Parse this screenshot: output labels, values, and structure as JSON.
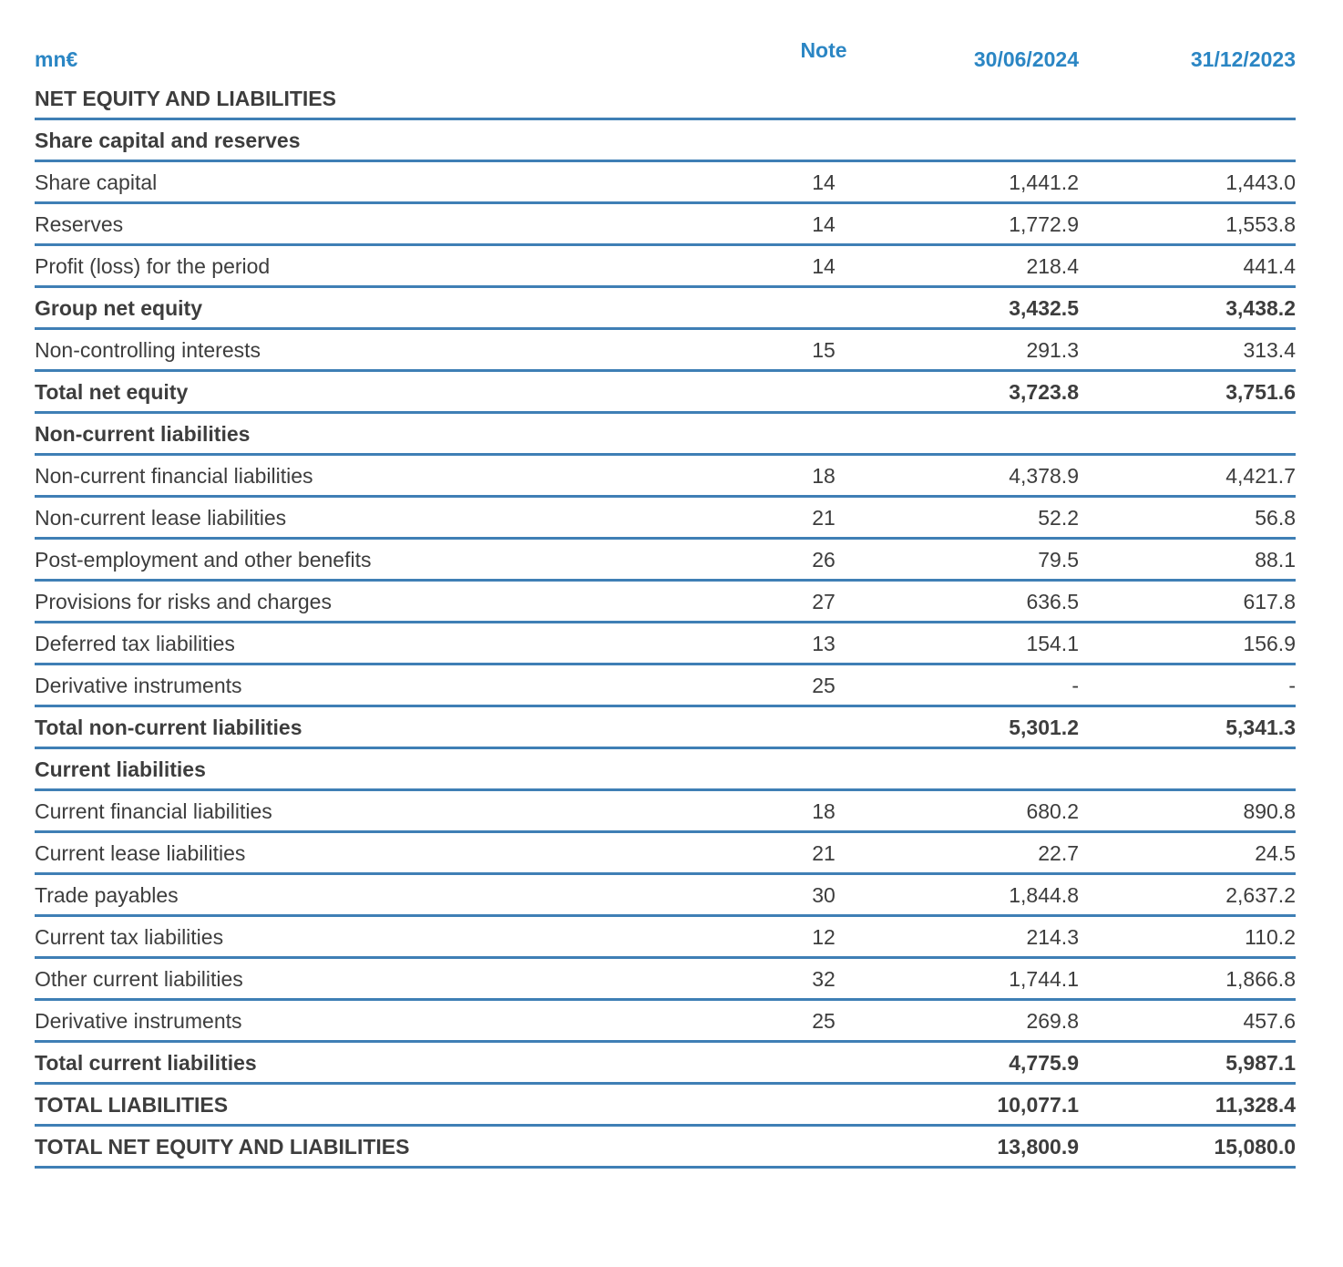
{
  "colors": {
    "accent": "#2b86c4",
    "line": "#3f7fb5",
    "text": "#3d3d3d"
  },
  "table": {
    "unit": "mn€",
    "columns": {
      "note": "Note",
      "period1": "30/06/2024",
      "period2": "31/12/2023"
    },
    "rows": [
      {
        "type": "section",
        "label": "NET EQUITY AND LIABILITIES"
      },
      {
        "type": "section",
        "label": "Share capital and reserves"
      },
      {
        "type": "item",
        "label": "Share capital",
        "note": "14",
        "v1": "1,441.2",
        "v2": "1,443.0"
      },
      {
        "type": "item",
        "label": "Reserves",
        "note": "14",
        "v1": "1,772.9",
        "v2": "1,553.8"
      },
      {
        "type": "item",
        "label": "Profit (loss) for the period",
        "note": "14",
        "v1": "218.4",
        "v2": "441.4"
      },
      {
        "type": "total",
        "label": "Group net equity",
        "v1": "3,432.5",
        "v2": "3,438.2"
      },
      {
        "type": "item",
        "label": "Non-controlling interests",
        "note": "15",
        "v1": "291.3",
        "v2": "313.4"
      },
      {
        "type": "total",
        "label": "Total net equity",
        "v1": "3,723.8",
        "v2": "3,751.6"
      },
      {
        "type": "section",
        "label": "Non-current liabilities"
      },
      {
        "type": "item",
        "label": "Non-current financial liabilities",
        "note": "18",
        "v1": "4,378.9",
        "v2": "4,421.7"
      },
      {
        "type": "item",
        "label": "Non-current lease liabilities",
        "note": "21",
        "v1": "52.2",
        "v2": "56.8"
      },
      {
        "type": "item",
        "label": "Post-employment and other benefits",
        "note": "26",
        "v1": "79.5",
        "v2": "88.1"
      },
      {
        "type": "item",
        "label": "Provisions for risks and charges",
        "note": "27",
        "v1": "636.5",
        "v2": "617.8"
      },
      {
        "type": "item",
        "label": "Deferred tax liabilities",
        "note": "13",
        "v1": "154.1",
        "v2": "156.9"
      },
      {
        "type": "item",
        "label": "Derivative instruments",
        "note": "25",
        "v1": "-",
        "v2": "-"
      },
      {
        "type": "total",
        "label": "Total non-current liabilities",
        "v1": "5,301.2",
        "v2": "5,341.3"
      },
      {
        "type": "section",
        "label": "Current liabilities"
      },
      {
        "type": "item",
        "label": "Current financial liabilities",
        "note": "18",
        "v1": "680.2",
        "v2": "890.8"
      },
      {
        "type": "item",
        "label": "Current lease liabilities",
        "note": "21",
        "v1": "22.7",
        "v2": "24.5"
      },
      {
        "type": "item",
        "label": "Trade payables",
        "note": "30",
        "v1": "1,844.8",
        "v2": "2,637.2"
      },
      {
        "type": "item",
        "label": "Current tax liabilities",
        "note": "12",
        "v1": "214.3",
        "v2": "110.2"
      },
      {
        "type": "item",
        "label": "Other current liabilities",
        "note": "32",
        "v1": "1,744.1",
        "v2": "1,866.8"
      },
      {
        "type": "item",
        "label": "Derivative instruments",
        "note": "25",
        "v1": "269.8",
        "v2": "457.6"
      },
      {
        "type": "total",
        "label": "Total current liabilities",
        "v1": "4,775.9",
        "v2": "5,987.1"
      },
      {
        "type": "total",
        "label": "TOTAL LIABILITIES",
        "v1": "10,077.1",
        "v2": "11,328.4"
      },
      {
        "type": "total",
        "label": "TOTAL NET EQUITY AND LIABILITIES",
        "v1": "13,800.9",
        "v2": "15,080.0"
      }
    ]
  }
}
